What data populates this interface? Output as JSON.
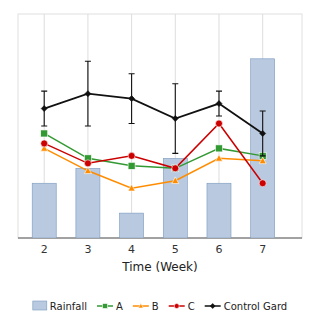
{
  "chart_data": {
    "type": "bar",
    "xlabel": "Time (Week)",
    "x": [
      2,
      3,
      4,
      5,
      6,
      7
    ],
    "xlim": [
      1.4,
      7.9
    ],
    "xticks": [
      2,
      3,
      4,
      5,
      6,
      7
    ],
    "ylim": [
      0,
      90
    ],
    "grid": true,
    "tick_labels": "x",
    "legend": "bottom",
    "series": [
      {
        "name": "Rainfall",
        "type": "bar",
        "color": "#b8c9e0",
        "values": [
          22,
          28,
          10,
          32,
          22,
          72
        ]
      },
      {
        "name": "A",
        "type": "line",
        "color": "#339933",
        "marker": "square",
        "values": [
          42,
          32,
          29,
          28,
          36,
          33
        ]
      },
      {
        "name": "B",
        "type": "line",
        "color": "#ff8c00",
        "marker": "triangle",
        "values": [
          36,
          27,
          20,
          23,
          32,
          31
        ]
      },
      {
        "name": "C",
        "type": "line",
        "color": "#cc0000",
        "marker": "circle",
        "values": [
          38,
          30,
          33,
          28,
          46,
          22
        ]
      },
      {
        "name": "Control Gard",
        "type": "line",
        "color": "#111111",
        "marker": "diamond",
        "values": [
          52,
          58,
          56,
          48,
          54,
          42
        ],
        "errors": [
          7,
          13,
          10,
          14,
          5,
          9
        ]
      }
    ]
  }
}
